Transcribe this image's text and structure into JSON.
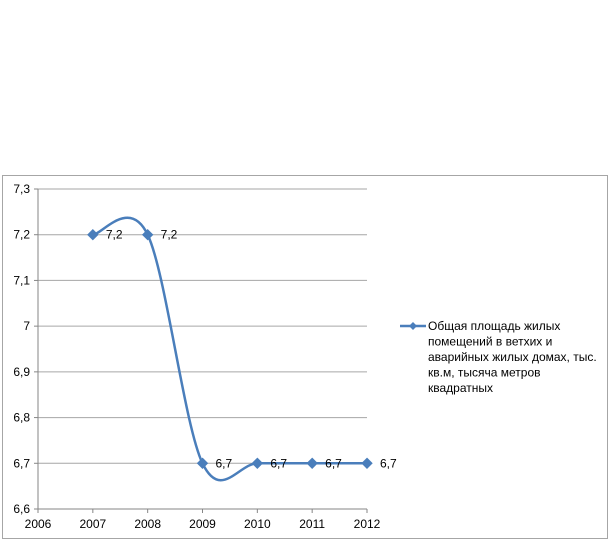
{
  "chart_data": {
    "type": "line",
    "smooth": true,
    "x": [
      2007,
      2008,
      2009,
      2010,
      2011,
      2012
    ],
    "series": [
      {
        "name": "Общая площадь жилых помещений в ветхих и аварийных жилых домах, тыс. кв.м, тысяча метров квадратных",
        "values": [
          7.2,
          7.2,
          6.7,
          6.7,
          6.7,
          6.7
        ],
        "value_labels": [
          "7,2",
          "7,2",
          "6,7",
          "6,7",
          "6,7",
          "6,7"
        ],
        "color": "#4a7ebb",
        "marker": "diamond"
      }
    ],
    "xlim": [
      2006,
      2012
    ],
    "ylim": [
      6.6,
      7.3
    ],
    "x_ticks": [
      "2006",
      "2007",
      "2008",
      "2009",
      "2010",
      "2011",
      "2012"
    ],
    "y_ticks": [
      "6,6",
      "6,7",
      "6,8",
      "6,9",
      "7",
      "7,1",
      "7,2",
      "7,3"
    ],
    "grid": true,
    "legend_position": "right",
    "legend_lines": [
      "Общая площадь жилых",
      "помещений в ветхих и",
      "аварийных жилых домах, тыс.",
      "кв.м, тысяча метров",
      "квадратных"
    ],
    "title": "",
    "xlabel": "",
    "ylabel": ""
  }
}
